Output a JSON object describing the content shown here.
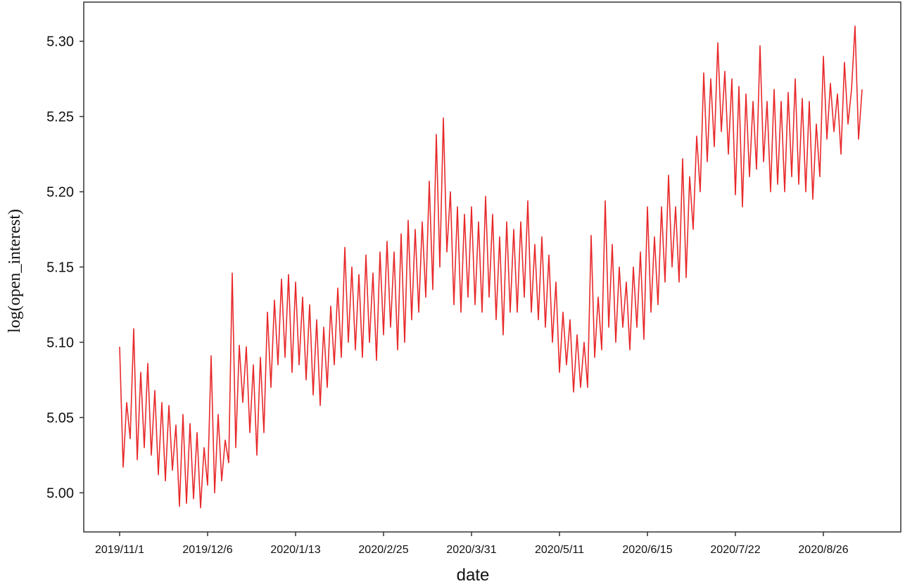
{
  "chart_data": {
    "type": "line",
    "xlabel": "date",
    "ylabel": "log(open_interest)",
    "color": "#e8292b",
    "categories": [
      "2019/11/1",
      null,
      null,
      null,
      null,
      null,
      null,
      null,
      null,
      null,
      null,
      null,
      null,
      null,
      null,
      null,
      null,
      null,
      null,
      null,
      null,
      null,
      null,
      null,
      null,
      "2019/12/6",
      null,
      null,
      null,
      null,
      null,
      null,
      null,
      null,
      null,
      null,
      null,
      null,
      null,
      null,
      null,
      null,
      null,
      null,
      null,
      null,
      null,
      null,
      null,
      null,
      "2020/1/13",
      null,
      null,
      null,
      null,
      null,
      null,
      null,
      null,
      null,
      null,
      null,
      null,
      null,
      null,
      null,
      null,
      null,
      null,
      null,
      null,
      null,
      null,
      null,
      null,
      "2020/2/25",
      null,
      null,
      null,
      null,
      null,
      null,
      null,
      null,
      null,
      null,
      null,
      null,
      null,
      null,
      null,
      null,
      null,
      null,
      null,
      null,
      null,
      null,
      null,
      null,
      "2020/3/31",
      null,
      null,
      null,
      null,
      null,
      null,
      null,
      null,
      null,
      null,
      null,
      null,
      null,
      null,
      null,
      null,
      null,
      null,
      null,
      null,
      null,
      null,
      null,
      null,
      "2020/5/11",
      null,
      null,
      null,
      null,
      null,
      null,
      null,
      null,
      null,
      null,
      null,
      null,
      null,
      null,
      null,
      null,
      null,
      null,
      null,
      null,
      null,
      null,
      null,
      null,
      "2020/6/15",
      null,
      null,
      null,
      null,
      null,
      null,
      null,
      null,
      null,
      null,
      null,
      null,
      null,
      null,
      null,
      null,
      null,
      null,
      null,
      null,
      null,
      null,
      null,
      null,
      "2020/7/22",
      null,
      null,
      null,
      null,
      null,
      null,
      null,
      null,
      null,
      null,
      null,
      null,
      null,
      null,
      null,
      null,
      null,
      null,
      null,
      null,
      null,
      null,
      null,
      null,
      "2020/8/26",
      null,
      null,
      null,
      null,
      null,
      null,
      null,
      null,
      null,
      null,
      null
    ],
    "values": [
      5.097,
      5.017,
      5.06,
      5.036,
      5.109,
      5.022,
      5.08,
      5.03,
      5.086,
      5.025,
      5.068,
      5.012,
      5.06,
      5.008,
      5.058,
      5.015,
      5.045,
      4.991,
      5.052,
      4.993,
      5.046,
      4.996,
      5.04,
      4.99,
      5.03,
      5.005,
      5.091,
      5.0,
      5.052,
      5.008,
      5.035,
      5.02,
      5.146,
      5.03,
      5.098,
      5.06,
      5.097,
      5.04,
      5.085,
      5.025,
      5.09,
      5.04,
      5.12,
      5.07,
      5.128,
      5.085,
      5.142,
      5.09,
      5.145,
      5.08,
      5.14,
      5.085,
      5.13,
      5.075,
      5.125,
      5.065,
      5.115,
      5.058,
      5.11,
      5.07,
      5.124,
      5.085,
      5.136,
      5.09,
      5.163,
      5.1,
      5.15,
      5.095,
      5.145,
      5.09,
      5.158,
      5.1,
      5.146,
      5.088,
      5.16,
      5.105,
      5.167,
      5.11,
      5.16,
      5.095,
      5.172,
      5.1,
      5.181,
      5.115,
      5.175,
      5.12,
      5.18,
      5.13,
      5.207,
      5.135,
      5.238,
      5.15,
      5.249,
      5.16,
      5.2,
      5.125,
      5.19,
      5.12,
      5.185,
      5.13,
      5.19,
      5.125,
      5.18,
      5.12,
      5.197,
      5.13,
      5.185,
      5.115,
      5.17,
      5.105,
      5.18,
      5.12,
      5.175,
      5.12,
      5.18,
      5.13,
      5.194,
      5.12,
      5.165,
      5.115,
      5.17,
      5.11,
      5.158,
      5.1,
      5.14,
      5.08,
      5.12,
      5.085,
      5.115,
      5.067,
      5.105,
      5.07,
      5.1,
      5.07,
      5.171,
      5.09,
      5.13,
      5.095,
      5.194,
      5.11,
      5.165,
      5.1,
      5.15,
      5.11,
      5.14,
      5.095,
      5.15,
      5.11,
      5.16,
      5.102,
      5.19,
      5.12,
      5.17,
      5.125,
      5.19,
      5.14,
      5.211,
      5.15,
      5.19,
      5.14,
      5.222,
      5.143,
      5.21,
      5.175,
      5.237,
      5.2,
      5.279,
      5.22,
      5.275,
      5.23,
      5.299,
      5.24,
      5.28,
      5.225,
      5.275,
      5.198,
      5.27,
      5.19,
      5.265,
      5.21,
      5.26,
      5.215,
      5.297,
      5.22,
      5.26,
      5.2,
      5.268,
      5.205,
      5.26,
      5.2,
      5.266,
      5.21,
      5.275,
      5.205,
      5.262,
      5.2,
      5.26,
      5.195,
      5.245,
      5.21,
      5.29,
      5.235,
      5.272,
      5.24,
      5.265,
      5.225,
      5.286,
      5.245,
      5.268,
      5.31,
      5.235,
      5.268
    ],
    "ylim": [
      4.974,
      5.326
    ],
    "yticks": [
      {
        "value": 5.0,
        "label": "5.00"
      },
      5.05,
      {
        "value": 5.1,
        "label": "5.10"
      },
      5.15,
      {
        "value": 5.2,
        "label": "5.20"
      },
      5.25,
      {
        "value": 5.3,
        "label": "5.30"
      }
    ]
  }
}
